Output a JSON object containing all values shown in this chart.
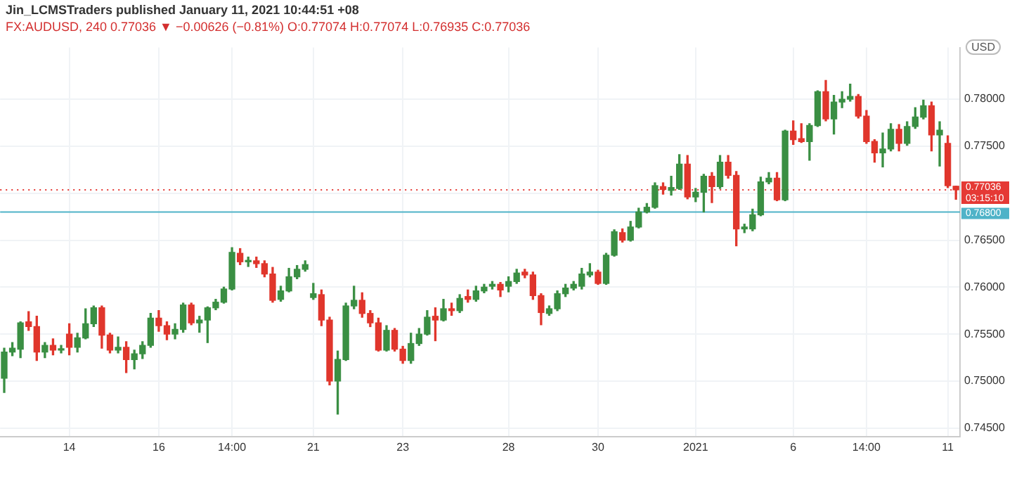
{
  "chart_data": {
    "type": "candlestick",
    "title": "Jin_LCMSTraders published January 11, 2021 10:44:51 +08",
    "subtitle": "FX:AUDUSD, 240 0.77036 ▼ −0.00626 (−0.81%) O:0.77074 H:0.77074 L:0.76935 C:0.77036",
    "ylabel": "USD",
    "annotations": [
      "03:15:10"
    ],
    "categories": [
      null,
      null,
      null,
      null,
      null,
      null,
      null,
      null,
      "14",
      null,
      null,
      null,
      null,
      null,
      null,
      null,
      null,
      null,
      null,
      "16",
      null,
      null,
      null,
      null,
      null,
      null,
      null,
      null,
      "14:00",
      null,
      null,
      null,
      null,
      null,
      null,
      null,
      null,
      null,
      "21",
      null,
      null,
      null,
      null,
      null,
      null,
      null,
      null,
      null,
      null,
      "23",
      null,
      null,
      null,
      null,
      null,
      null,
      null,
      null,
      null,
      null,
      null,
      null,
      "28",
      null,
      null,
      null,
      null,
      null,
      null,
      null,
      null,
      null,
      null,
      "30",
      null,
      null,
      null,
      null,
      null,
      null,
      null,
      null,
      null,
      null,
      null,
      "2021",
      null,
      null,
      null,
      null,
      null,
      null,
      null,
      null,
      null,
      null,
      null,
      "6",
      null,
      null,
      null,
      null,
      null,
      null,
      null,
      null,
      "14:00",
      null,
      null,
      null,
      null,
      null,
      null,
      null,
      null,
      null,
      "11",
      null
    ],
    "ohlc": [
      [
        0.7503,
        0.7535,
        0.7488,
        0.7531
      ],
      [
        0.7531,
        0.7541,
        0.7527,
        0.7535
      ],
      [
        0.7534,
        0.7563,
        0.7525,
        0.7562
      ],
      [
        0.7563,
        0.7574,
        0.7554,
        0.7558
      ],
      [
        0.7558,
        0.7569,
        0.7522,
        0.7531
      ],
      [
        0.7531,
        0.7541,
        0.7525,
        0.7538
      ],
      [
        0.7538,
        0.7545,
        0.7528,
        0.7533
      ],
      [
        0.7533,
        0.7538,
        0.753,
        0.7534
      ],
      [
        0.755,
        0.7561,
        0.7528,
        0.7536
      ],
      [
        0.7536,
        0.7551,
        0.7531,
        0.7546
      ],
      [
        0.7546,
        0.7577,
        0.7545,
        0.7561
      ],
      [
        0.7561,
        0.758,
        0.7558,
        0.7578
      ],
      [
        0.7578,
        0.758,
        0.7535,
        0.7549
      ],
      [
        0.7549,
        0.7551,
        0.753,
        0.7533
      ],
      [
        0.7533,
        0.7547,
        0.753,
        0.7536
      ],
      [
        0.7536,
        0.7542,
        0.7509,
        0.7523
      ],
      [
        0.7523,
        0.7533,
        0.7513,
        0.7529
      ],
      [
        0.7529,
        0.7542,
        0.7524,
        0.7538
      ],
      [
        0.7538,
        0.7572,
        0.7536,
        0.7567
      ],
      [
        0.7567,
        0.7575,
        0.7553,
        0.7559
      ],
      [
        0.7559,
        0.7563,
        0.7544,
        0.755
      ],
      [
        0.755,
        0.7561,
        0.7545,
        0.7555
      ],
      [
        0.7555,
        0.7583,
        0.7552,
        0.7581
      ],
      [
        0.7581,
        0.7583,
        0.756,
        0.7562
      ],
      [
        0.7562,
        0.7569,
        0.7552,
        0.7565
      ],
      [
        0.7565,
        0.7579,
        0.7541,
        0.7578
      ],
      [
        0.7578,
        0.7587,
        0.7576,
        0.7584
      ],
      [
        0.7584,
        0.76,
        0.7583,
        0.7598
      ],
      [
        0.7598,
        0.7642,
        0.7597,
        0.7637
      ],
      [
        0.7636,
        0.7641,
        0.7624,
        0.7627
      ],
      [
        0.7627,
        0.7632,
        0.7622,
        0.7628
      ],
      [
        0.7628,
        0.7632,
        0.7621,
        0.7625
      ],
      [
        0.7625,
        0.7628,
        0.7611,
        0.7614
      ],
      [
        0.7614,
        0.7621,
        0.7584,
        0.7586
      ],
      [
        0.7587,
        0.7601,
        0.7585,
        0.7596
      ],
      [
        0.7596,
        0.762,
        0.7595,
        0.7611
      ],
      [
        0.7611,
        0.7623,
        0.7609,
        0.7619
      ],
      [
        0.7619,
        0.7628,
        0.7617,
        0.7624
      ],
      [
        0.7589,
        0.7604,
        0.7587,
        0.7593
      ],
      [
        0.7592,
        0.7597,
        0.7559,
        0.7565
      ],
      [
        0.7565,
        0.7568,
        0.7496,
        0.75
      ],
      [
        0.75,
        0.7532,
        0.7465,
        0.7523
      ],
      [
        0.7523,
        0.7583,
        0.7522,
        0.758
      ],
      [
        0.758,
        0.7601,
        0.7577,
        0.7586
      ],
      [
        0.7586,
        0.7594,
        0.7568,
        0.7572
      ],
      [
        0.7572,
        0.7575,
        0.7558,
        0.7562
      ],
      [
        0.7562,
        0.7567,
        0.7532,
        0.7533
      ],
      [
        0.7533,
        0.7559,
        0.7532,
        0.7554
      ],
      [
        0.7554,
        0.7556,
        0.7532,
        0.7534
      ],
      [
        0.7534,
        0.7537,
        0.7519,
        0.7522
      ],
      [
        0.7522,
        0.7551,
        0.7519,
        0.754
      ],
      [
        0.754,
        0.7556,
        0.7538,
        0.755
      ],
      [
        0.755,
        0.7575,
        0.7549,
        0.7568
      ],
      [
        0.7569,
        0.7578,
        0.7543,
        0.7565
      ],
      [
        0.7565,
        0.7587,
        0.7564,
        0.7577
      ],
      [
        0.7577,
        0.7583,
        0.757,
        0.7575
      ],
      [
        0.7575,
        0.7592,
        0.7573,
        0.7588
      ],
      [
        0.759,
        0.7597,
        0.7584,
        0.7587
      ],
      [
        0.7587,
        0.7601,
        0.7585,
        0.7596
      ],
      [
        0.7596,
        0.7603,
        0.7594,
        0.76
      ],
      [
        0.7601,
        0.7606,
        0.7598,
        0.7603
      ],
      [
        0.7603,
        0.7605,
        0.759,
        0.7597
      ],
      [
        0.7601,
        0.7611,
        0.7595,
        0.7606
      ],
      [
        0.7606,
        0.7619,
        0.7604,
        0.7615
      ],
      [
        0.7616,
        0.7619,
        0.761,
        0.7613
      ],
      [
        0.7613,
        0.7616,
        0.7587,
        0.7591
      ],
      [
        0.7591,
        0.7593,
        0.756,
        0.7573
      ],
      [
        0.7572,
        0.758,
        0.757,
        0.7577
      ],
      [
        0.7577,
        0.7596,
        0.7575,
        0.7593
      ],
      [
        0.7593,
        0.7603,
        0.759,
        0.7599
      ],
      [
        0.7599,
        0.7606,
        0.7597,
        0.7603
      ],
      [
        0.7601,
        0.762,
        0.7598,
        0.7614
      ],
      [
        0.7613,
        0.7625,
        0.7611,
        0.7616
      ],
      [
        0.7616,
        0.7618,
        0.7603,
        0.7604
      ],
      [
        0.7604,
        0.7636,
        0.7603,
        0.7634
      ],
      [
        0.7634,
        0.7661,
        0.7633,
        0.7659
      ],
      [
        0.7658,
        0.7662,
        0.7648,
        0.765
      ],
      [
        0.765,
        0.767,
        0.7649,
        0.7664
      ],
      [
        0.7664,
        0.7684,
        0.7663,
        0.768
      ],
      [
        0.768,
        0.7689,
        0.7679,
        0.7685
      ],
      [
        0.7685,
        0.7711,
        0.7684,
        0.7708
      ],
      [
        0.7707,
        0.7711,
        0.7699,
        0.7704
      ],
      [
        0.7703,
        0.7718,
        0.7698,
        0.7706
      ],
      [
        0.7705,
        0.7741,
        0.7704,
        0.7731
      ],
      [
        0.7731,
        0.774,
        0.7694,
        0.7696
      ],
      [
        0.7696,
        0.7705,
        0.7691,
        0.7701
      ],
      [
        0.7701,
        0.772,
        0.768,
        0.7718
      ],
      [
        0.7718,
        0.7722,
        0.769,
        0.7707
      ],
      [
        0.7707,
        0.774,
        0.7705,
        0.7733
      ],
      [
        0.7733,
        0.774,
        0.7716,
        0.7719
      ],
      [
        0.7719,
        0.7723,
        0.7644,
        0.7662
      ],
      [
        0.7662,
        0.7667,
        0.7658,
        0.7664
      ],
      [
        0.7662,
        0.7683,
        0.766,
        0.7677
      ],
      [
        0.7677,
        0.7717,
        0.7676,
        0.7712
      ],
      [
        0.7712,
        0.7722,
        0.771,
        0.7716
      ],
      [
        0.7716,
        0.7722,
        0.7692,
        0.7693
      ],
      [
        0.7693,
        0.7767,
        0.7692,
        0.7766
      ],
      [
        0.7766,
        0.7777,
        0.7752,
        0.7757
      ],
      [
        0.7758,
        0.7774,
        0.7754,
        0.7755
      ],
      [
        0.7755,
        0.7774,
        0.7735,
        0.7772
      ],
      [
        0.7772,
        0.7809,
        0.7771,
        0.7808
      ],
      [
        0.7808,
        0.782,
        0.7777,
        0.7779
      ],
      [
        0.7779,
        0.7804,
        0.7763,
        0.7797
      ],
      [
        0.7797,
        0.7808,
        0.7791,
        0.78
      ],
      [
        0.78,
        0.7816,
        0.7798,
        0.7803
      ],
      [
        0.7803,
        0.7805,
        0.778,
        0.7782
      ],
      [
        0.7782,
        0.7788,
        0.7753,
        0.7755
      ],
      [
        0.7755,
        0.7757,
        0.7733,
        0.7743
      ],
      [
        0.7743,
        0.7764,
        0.7728,
        0.7747
      ],
      [
        0.7747,
        0.7774,
        0.7745,
        0.7768
      ],
      [
        0.7768,
        0.7773,
        0.7745,
        0.7753
      ],
      [
        0.7753,
        0.7776,
        0.7751,
        0.7771
      ],
      [
        0.7771,
        0.7791,
        0.7769,
        0.7781
      ],
      [
        0.7781,
        0.7799,
        0.7779,
        0.7793
      ],
      [
        0.7793,
        0.7797,
        0.7745,
        0.7762
      ],
      [
        0.7762,
        0.7776,
        0.7729,
        0.7767
      ],
      [
        0.7753,
        0.7761,
        0.7706,
        0.7708
      ],
      [
        0.77074,
        0.77074,
        0.76935,
        0.77036
      ]
    ],
    "ylim": [
      0.7441,
      0.7855
    ],
    "yticks": [
      {
        "value": 0.745,
        "label": "0.74500"
      },
      {
        "value": 0.75,
        "label": "0.75000"
      },
      {
        "value": 0.755,
        "label": "0.75500"
      },
      {
        "value": 0.76,
        "label": "0.76000"
      },
      {
        "value": 0.765,
        "label": "0.76500"
      },
      {
        "value": 0.77,
        "label": null
      },
      {
        "value": 0.775,
        "label": "0.77500"
      },
      {
        "value": 0.78,
        "label": "0.78000"
      }
    ],
    "ref_lines": [
      {
        "axis": "y",
        "value": 0.768,
        "label": "0.76800",
        "color": "#4fb3c8",
        "line_style": "solid"
      },
      {
        "axis": "y",
        "value": 0.77036,
        "label": "0.77036",
        "color": "#e53935",
        "line_style": "dotted"
      }
    ],
    "grid": true,
    "legend": false
  }
}
